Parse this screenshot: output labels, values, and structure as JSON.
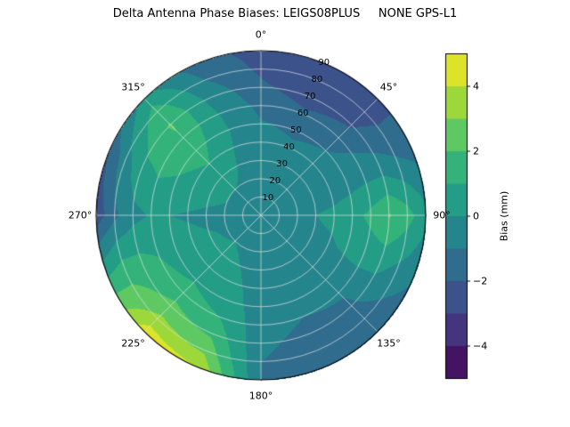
{
  "title": "Delta Antenna Phase Biases: LEIGS08PLUS     NONE GPS-L1",
  "chart_data": {
    "type": "heatmap",
    "projection": "polar",
    "title": "Delta Antenna Phase Biases: LEIGS08PLUS     NONE GPS-L1",
    "colormap": "viridis",
    "viridis_stops": [
      "#440154",
      "#472d7b",
      "#3b528b",
      "#2c728e",
      "#21918c",
      "#28ae80",
      "#5ec962",
      "#addc30",
      "#fde725"
    ],
    "levels_min": -5,
    "levels_max": 5,
    "level_step": 1,
    "grid": true,
    "theta_zero": "top",
    "theta_direction": "clockwise",
    "theta_tick_labels": [
      "0°",
      "45°",
      "90°",
      "135°",
      "180°",
      "225°",
      "270°",
      "315°"
    ],
    "radial_tick_labels": [
      "10",
      "20",
      "30",
      "40",
      "50",
      "60",
      "70",
      "80",
      "90"
    ],
    "azimuth_deg": [
      0,
      22.5,
      45,
      67.5,
      90,
      112.5,
      135,
      157.5,
      180,
      202.5,
      225,
      247.5,
      270,
      292.5,
      315,
      337.5
    ],
    "zenith_deg": [
      0,
      10,
      20,
      30,
      40,
      50,
      60,
      70,
      80,
      90
    ],
    "values": [
      [
        -0.3,
        -0.3,
        -0.4,
        -0.5,
        -0.6,
        -0.9,
        -1.3,
        -1.8,
        -2.2,
        -2.4
      ],
      [
        -0.3,
        -0.3,
        -0.4,
        -0.6,
        -0.8,
        -1.2,
        -1.8,
        -2.5,
        -3.0,
        -2.9
      ],
      [
        -0.3,
        -0.3,
        -0.4,
        -0.5,
        -0.7,
        -1.0,
        -1.5,
        -2.1,
        -2.5,
        -2.3
      ],
      [
        -0.3,
        -0.2,
        -0.2,
        -0.3,
        -0.4,
        -0.4,
        -0.4,
        -0.5,
        -0.9,
        -1.3
      ],
      [
        -0.3,
        -0.2,
        -0.1,
        0.0,
        0.2,
        0.6,
        1.3,
        2.1,
        1.4,
        0.3
      ],
      [
        -0.3,
        -0.2,
        -0.2,
        -0.2,
        -0.1,
        0.1,
        0.3,
        0.3,
        -0.3,
        -0.9
      ],
      [
        -0.3,
        -0.3,
        -0.3,
        -0.4,
        -0.5,
        -0.6,
        -0.9,
        -1.2,
        -1.6,
        -1.9
      ],
      [
        -0.3,
        -0.3,
        -0.4,
        -0.5,
        -0.6,
        -0.8,
        -1.0,
        -1.3,
        -1.5,
        -1.4
      ],
      [
        -0.3,
        -0.3,
        -0.3,
        -0.4,
        -0.4,
        -0.5,
        -0.6,
        -0.8,
        -1.0,
        -1.1
      ],
      [
        -0.3,
        -0.2,
        -0.1,
        0.0,
        0.2,
        0.5,
        1.0,
        1.8,
        2.8,
        4.0
      ],
      [
        -0.3,
        -0.2,
        0.0,
        0.2,
        0.5,
        0.9,
        1.5,
        2.3,
        3.3,
        4.6
      ],
      [
        -0.3,
        -0.2,
        -0.1,
        0.1,
        0.3,
        0.6,
        1.0,
        1.4,
        1.6,
        1.1
      ],
      [
        -0.3,
        -0.3,
        -0.2,
        -0.2,
        -0.1,
        0.0,
        0.1,
        -0.3,
        -1.2,
        -2.6
      ],
      [
        -0.3,
        -0.2,
        0.0,
        0.3,
        0.6,
        0.9,
        1.1,
        0.7,
        -0.4,
        -2.0
      ],
      [
        -0.3,
        -0.2,
        0.0,
        0.5,
        1.0,
        1.5,
        1.9,
        2.1,
        1.5,
        0.4
      ],
      [
        -0.3,
        -0.3,
        -0.2,
        -0.1,
        0.0,
        0.1,
        0.0,
        -0.4,
        -1.0,
        -1.6
      ]
    ],
    "colorbar": {
      "label": "Bias (mm)",
      "ticks": [
        4,
        2,
        0,
        -2,
        -4
      ],
      "tick_labels": [
        "4",
        "2",
        "0",
        "−2",
        "−4"
      ],
      "orientation": "vertical",
      "position": "right"
    }
  }
}
